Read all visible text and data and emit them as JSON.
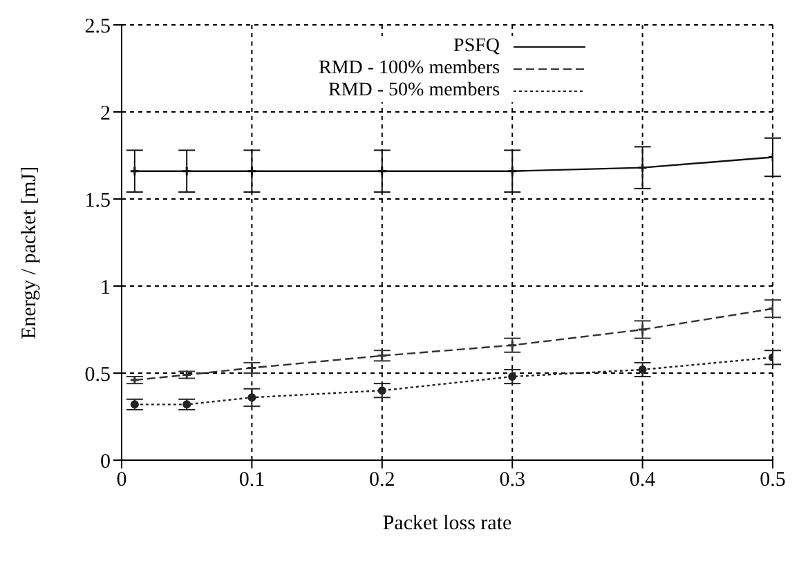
{
  "chart_data": {
    "type": "line",
    "xlabel": "Packet loss rate",
    "ylabel": "Energy / packet [mJ]",
    "x": [
      0.01,
      0.05,
      0.1,
      0.2,
      0.3,
      0.4,
      0.5
    ],
    "series": [
      {
        "name": "PSFQ",
        "color": "#111111",
        "line_style": "solid",
        "marker": "cross",
        "values": [
          1.66,
          1.66,
          1.66,
          1.66,
          1.66,
          1.68,
          1.74
        ],
        "errors": [
          0.12,
          0.12,
          0.12,
          0.12,
          0.12,
          0.12,
          0.11
        ]
      },
      {
        "name": "RMD - 100% members",
        "color": "#333333",
        "line_style": "dashed",
        "marker": "cross",
        "values": [
          0.46,
          0.49,
          0.53,
          0.6,
          0.66,
          0.75,
          0.87
        ],
        "errors": [
          0.02,
          0.02,
          0.03,
          0.03,
          0.04,
          0.05,
          0.05
        ]
      },
      {
        "name": "RMD - 50% members",
        "color": "#222222",
        "line_style": "dotted",
        "marker": "circle",
        "values": [
          0.32,
          0.32,
          0.36,
          0.4,
          0.48,
          0.52,
          0.59
        ],
        "errors": [
          0.03,
          0.03,
          0.05,
          0.04,
          0.04,
          0.04,
          0.04
        ]
      }
    ],
    "xlim": [
      0,
      0.5
    ],
    "xticks": [
      0,
      0.1,
      0.2,
      0.3,
      0.4,
      0.5
    ],
    "ylim": [
      0,
      2.5
    ],
    "yticks": [
      0,
      0.5,
      1,
      1.5,
      2,
      2.5
    ],
    "grid": true,
    "legend": "top"
  }
}
